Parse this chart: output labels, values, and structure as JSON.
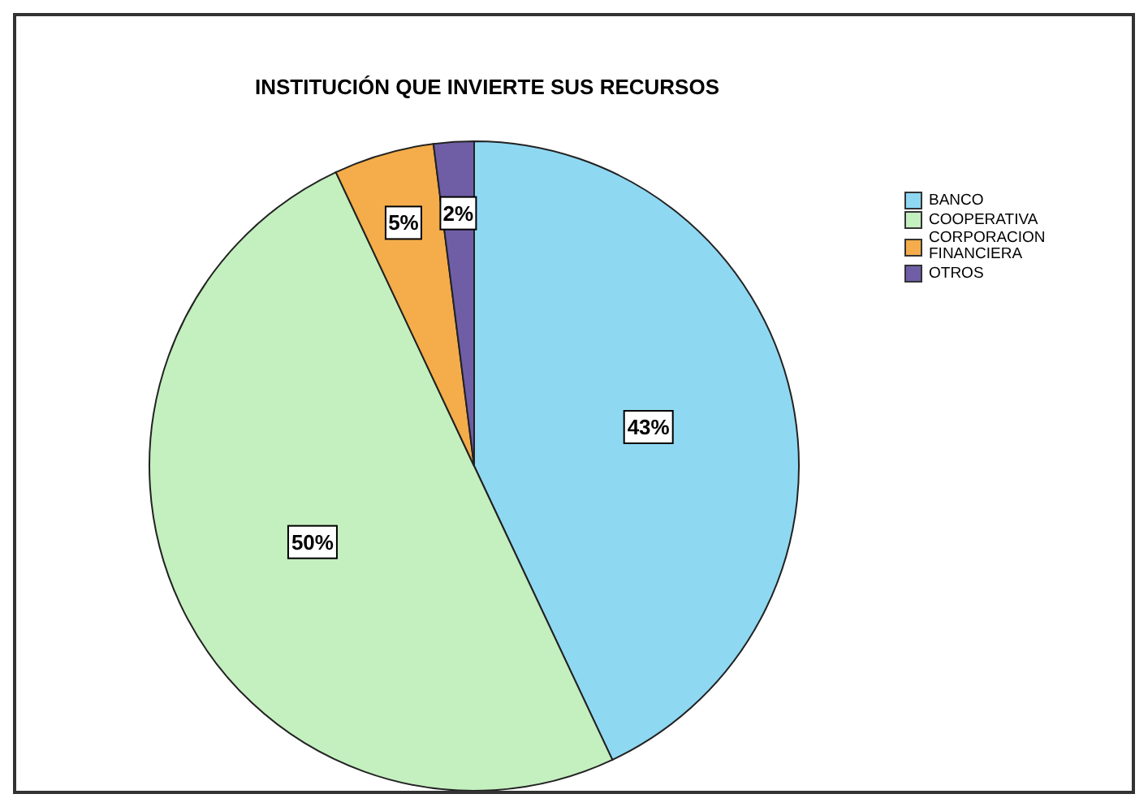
{
  "chart_data": {
    "type": "pie",
    "title": "INSTITUCIÓN QUE INVIERTE SUS RECURSOS",
    "categories": [
      "BANCO",
      "COOPERATIVA",
      "CORPORACION FINANCIERA",
      "OTROS"
    ],
    "values": [
      43,
      50,
      5,
      2
    ],
    "colors": [
      "#8fd8f2",
      "#c4efbf",
      "#f4ad4a",
      "#6f5ea6"
    ],
    "value_labels": [
      "43%",
      "50%",
      "5%",
      "2%"
    ],
    "legend": "top right"
  }
}
